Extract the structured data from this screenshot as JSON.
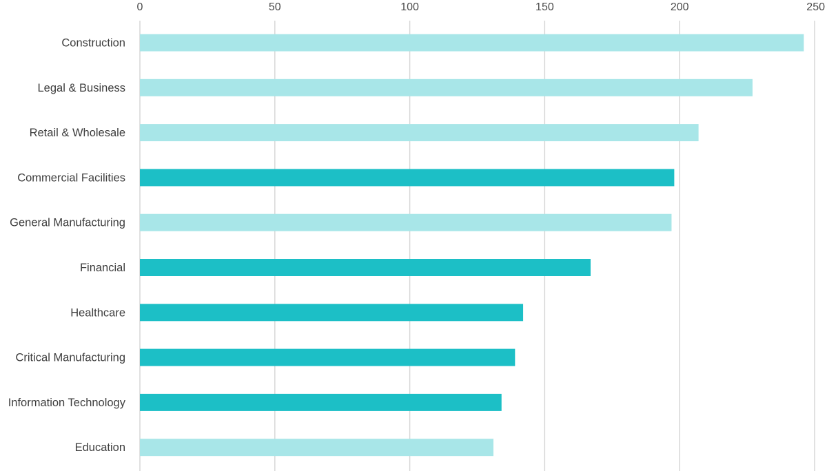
{
  "chart_data": {
    "type": "bar",
    "orientation": "horizontal",
    "categories": [
      "Construction",
      "Legal & Business",
      "Retail & Wholesale",
      "Commercial Facilities",
      "General Manufacturing",
      "Financial",
      "Healthcare",
      "Critical Manufacturing",
      "Information Technology",
      "Education"
    ],
    "values": [
      246,
      227,
      207,
      198,
      197,
      167,
      142,
      139,
      134,
      131
    ],
    "highlighted": [
      false,
      false,
      false,
      true,
      false,
      true,
      true,
      true,
      true,
      false
    ],
    "x_ticks": [
      "0",
      "50",
      "100",
      "150",
      "200",
      "250"
    ],
    "xlim": [
      0,
      250
    ],
    "tick_position": "top",
    "grid": true,
    "title": "",
    "xlabel": "",
    "ylabel": "",
    "colors": {
      "bar_light": "#a8e6e8",
      "bar_dark": "#1cbfc6",
      "grid": "#d4d4d4"
    }
  }
}
